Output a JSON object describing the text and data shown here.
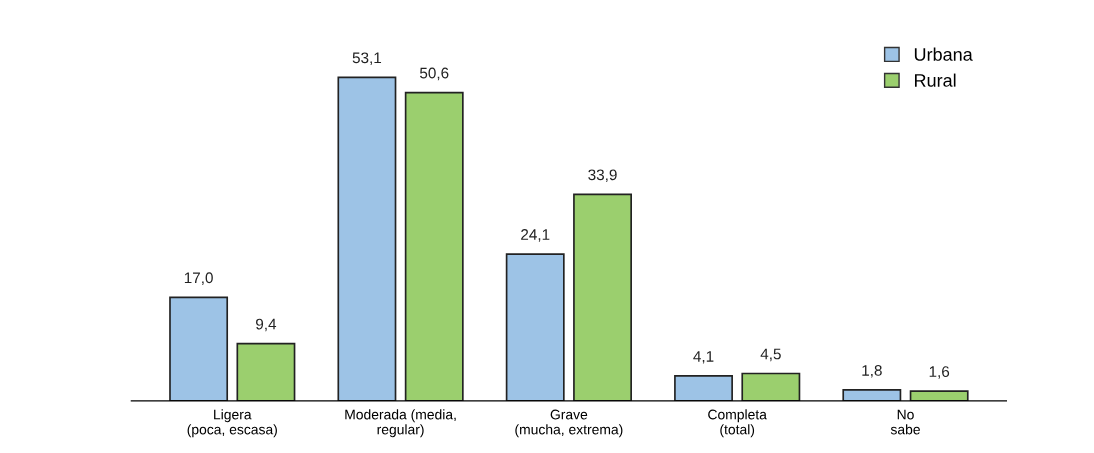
{
  "chart_data": {
    "type": "bar",
    "categories": [
      "Ligera\n(poca, escasa)",
      "Moderada (media,\nregular)",
      "Grave\n(mucha, extrema)",
      "Completa\n(total)",
      "No\nsabe"
    ],
    "series": [
      {
        "name": "Urbana",
        "color": "#9dc3e6",
        "values": [
          17.0,
          53.1,
          24.1,
          4.1,
          1.8
        ],
        "value_labels": [
          "17,0",
          "53,1",
          "24,1",
          "4,1",
          "1,8"
        ]
      },
      {
        "name": "Rural",
        "color": "#9bcf6e",
        "values": [
          9.4,
          50.6,
          33.9,
          4.5,
          1.6
        ],
        "value_labels": [
          "9,4",
          "50,6",
          "33,9",
          "4,5",
          "1,6"
        ]
      }
    ],
    "legend": "top right"
  }
}
